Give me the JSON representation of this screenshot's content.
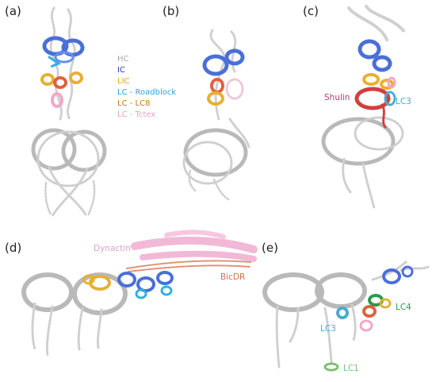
{
  "panels": {
    "a": "(a)",
    "b": "(b)",
    "c": "(c)",
    "d": "(d)",
    "e": "(e)"
  },
  "legend": [
    {
      "label": "HC",
      "color": "#a8a8a8"
    },
    {
      "label": "IC",
      "color": "#2a3fb8"
    },
    {
      "label": "LIC",
      "color": "#e0a020"
    },
    {
      "label": "LC - Roadblock",
      "color": "#2aa6d6"
    },
    {
      "label": "LC - LC8",
      "color": "#c0781a"
    },
    {
      "label": "LC - Tctex",
      "color": "#eaa0c0"
    }
  ],
  "annotations": {
    "shulin": "Shulin",
    "lc3_c": "LC3",
    "dynactin": "Dynactin",
    "bicdr": "BicDR",
    "lc3_e": "LC3",
    "lc4": "LC4",
    "lc1": "LC1"
  },
  "colors": {
    "hc": "#cfcfcf",
    "ic": "#4a6fd8",
    "lic": "#e8b030",
    "roadblock": "#30b0e0",
    "lc8": "#e06040",
    "tctex": "#f0a8c8",
    "shulin": "#d04040",
    "shulin_label": "#b0406a",
    "lc3": "#4aaad0",
    "dynactin": "#f2b8d8",
    "bicdr": "#e09070",
    "lc4": "#2a9a4a",
    "lc1": "#7ac070"
  }
}
